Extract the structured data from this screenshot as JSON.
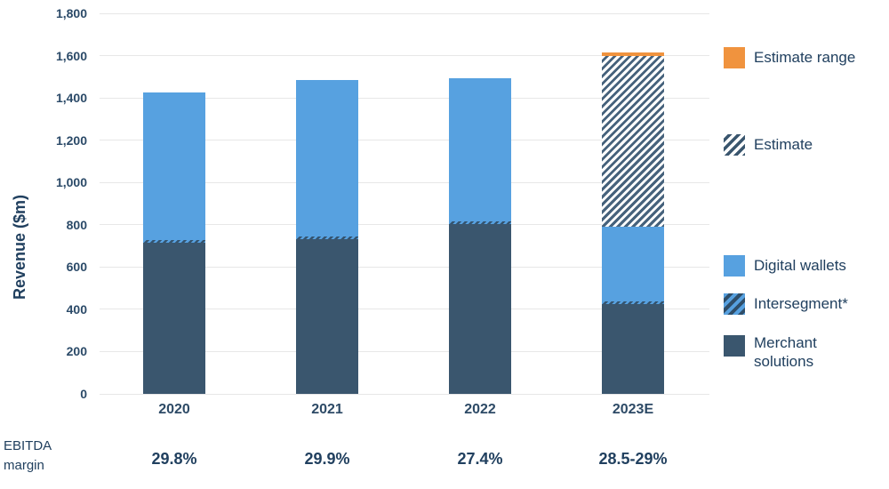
{
  "chart_data": {
    "type": "bar",
    "stacked": true,
    "title": "",
    "xlabel": "",
    "ylabel": "Revenue ($m)",
    "ylim": [
      0,
      1800
    ],
    "ytick_step": 200,
    "ytick_labels": [
      "0",
      "200",
      "400",
      "600",
      "800",
      "1,000",
      "1,200",
      "1,400",
      "1,600",
      "1,800"
    ],
    "grid": true,
    "legend_position": "right",
    "categories": [
      "2020",
      "2021",
      "2022",
      "2023E"
    ],
    "series": [
      {
        "name": "Merchant solutions",
        "slug": "merchant-solutions",
        "color": "#3A566E",
        "pattern": "solid",
        "css": "fill-navy",
        "values": [
          720,
          740,
          810,
          430
        ]
      },
      {
        "name": "Digital wallets",
        "slug": "digital-wallets",
        "color": "#57A1E0",
        "pattern": "solid",
        "css": "fill-blue",
        "values": [
          705,
          745,
          685,
          360
        ]
      },
      {
        "name": "Estimate",
        "slug": "estimate",
        "color": "#3A566E",
        "pattern": "diagonal-hatch-on-white",
        "css": "fill-estimate",
        "values": [
          0,
          0,
          0,
          810
        ]
      },
      {
        "name": "Estimate range",
        "slug": "estimate-range",
        "color": "#F0933E",
        "pattern": "solid",
        "css": "fill-orange",
        "values": [
          0,
          0,
          0,
          15
        ]
      }
    ],
    "intersegment": {
      "name": "Intersegment*",
      "pattern": "diagonal-hatch-on-blue",
      "display": "thin hatched sliver at the merchant/digital segment boundary of every bar"
    }
  },
  "legend": {
    "items": [
      {
        "label": "Estimate range",
        "swatch": "orange-solid"
      },
      {
        "label": "Estimate",
        "swatch": "white-navy-hatch"
      },
      {
        "label": "Digital wallets",
        "swatch": "blue-solid"
      },
      {
        "label": "Intersegment*",
        "swatch": "blue-navy-hatch"
      },
      {
        "label": "Merchant solutions",
        "swatch": "navy-solid"
      }
    ]
  },
  "ebitda": {
    "label": "EBITDA margin",
    "values": [
      "29.8%",
      "29.9%",
      "27.4%",
      "28.5-29%"
    ]
  },
  "colors": {
    "navy": "#3A566E",
    "blue": "#57A1E0",
    "orange": "#F0933E",
    "gridline": "#E7E7E7",
    "text": "#21405F"
  }
}
